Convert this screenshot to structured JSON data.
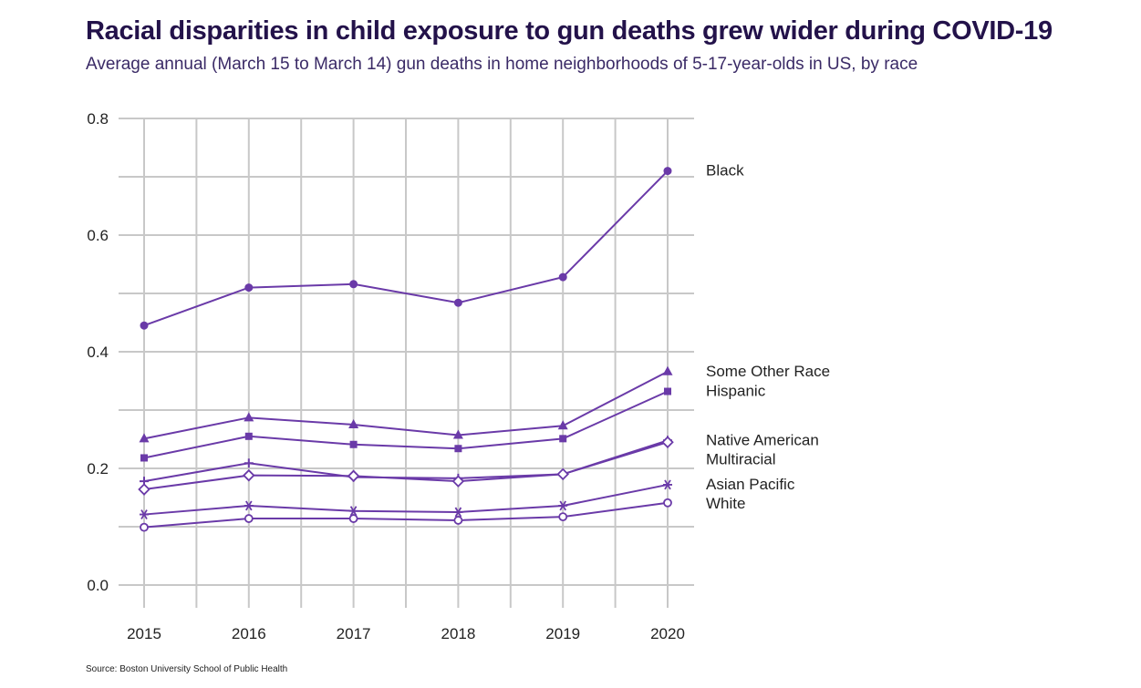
{
  "header": {
    "title": "Racial disparities in child exposure to gun deaths grew wider during COVID-19",
    "subtitle": "Average annual (March 15 to March 14) gun deaths in home neighborhoods of 5-17-year-olds in US, by race"
  },
  "footer": {
    "source": "Source: Boston University School of Public Health"
  },
  "colors": {
    "line": "#6a3aa8",
    "grid": "#c8c8c8"
  },
  "chart_data": {
    "type": "line",
    "title": "Racial disparities in child exposure to gun deaths grew wider during COVID-19",
    "subtitle": "Average annual (March 15 to March 14) gun deaths in home neighborhoods of 5-17-year-olds in US, by race",
    "xlabel": "",
    "ylabel": "",
    "x": [
      2015,
      2016,
      2017,
      2018,
      2019,
      2020
    ],
    "x_tick_labels": [
      "2015",
      "2016",
      "2017",
      "2018",
      "2019",
      "2020"
    ],
    "y_ticks": [
      0.0,
      0.2,
      0.4,
      0.6,
      0.8
    ],
    "y_tick_labels": [
      "0.0",
      "0.2",
      "0.4",
      "0.6",
      "0.8"
    ],
    "ylim": [
      0.0,
      0.8
    ],
    "grid": true,
    "legend": "end-of-line labels on right",
    "series": [
      {
        "name": "Black",
        "marker": "circle",
        "values": [
          0.445,
          0.51,
          0.516,
          0.484,
          0.528,
          0.71
        ]
      },
      {
        "name": "Some Other Race",
        "marker": "triangle",
        "values": [
          0.251,
          0.287,
          0.275,
          0.257,
          0.273,
          0.366
        ]
      },
      {
        "name": "Hispanic",
        "marker": "square",
        "values": [
          0.218,
          0.255,
          0.241,
          0.234,
          0.251,
          0.332
        ]
      },
      {
        "name": "Native American",
        "marker": "plus",
        "values": [
          0.178,
          0.209,
          0.185,
          0.183,
          0.19,
          0.248
        ]
      },
      {
        "name": "Multiracial",
        "marker": "diamond",
        "values": [
          0.164,
          0.188,
          0.187,
          0.178,
          0.19,
          0.245
        ]
      },
      {
        "name": "Asian Pacific",
        "marker": "asterisk",
        "values": [
          0.121,
          0.136,
          0.127,
          0.125,
          0.136,
          0.172
        ]
      },
      {
        "name": "White",
        "marker": "open-circle",
        "values": [
          0.099,
          0.114,
          0.114,
          0.111,
          0.117,
          0.141
        ]
      }
    ]
  }
}
